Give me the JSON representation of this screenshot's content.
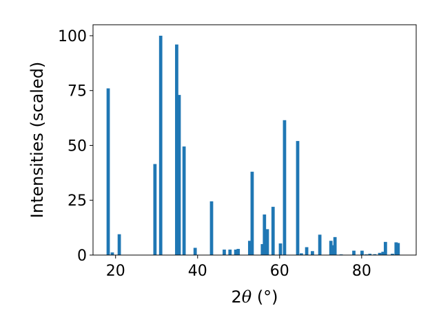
{
  "chart_data": {
    "type": "bar",
    "title": "",
    "xlabel_prefix": "2",
    "xlabel_symbol": "θ",
    "xlabel_suffix": " (°)",
    "ylabel": "Intensities (scaled)",
    "xlim": [
      14.5,
      93.3
    ],
    "ylim": [
      0,
      105
    ],
    "xticks": [
      20,
      40,
      60,
      80
    ],
    "yticks": [
      0,
      25,
      50,
      75,
      100
    ],
    "bar_width": 0.8,
    "grid": false,
    "color": "#1f77b4",
    "x": [
      18.2,
      19.2,
      20.9,
      29.6,
      31.0,
      34.9,
      35.5,
      36.7,
      39.4,
      43.4,
      46.5,
      47.9,
      49.3,
      49.9,
      52.7,
      53.3,
      55.8,
      56.3,
      57.0,
      58.4,
      60.2,
      61.2,
      64.4,
      65.3,
      66.6,
      68.0,
      69.8,
      72.5,
      72.9,
      73.5,
      75.0,
      78.1,
      80.1,
      81.1,
      82.0,
      83.2,
      84.4,
      85.2,
      85.8,
      87.5,
      88.4,
      88.9
    ],
    "values": [
      76,
      1.2,
      9.5,
      41.5,
      100,
      96,
      73,
      49.5,
      3.3,
      24.5,
      2.5,
      2.5,
      2.5,
      2.8,
      6.5,
      38,
      5,
      18.5,
      11.8,
      22,
      5.3,
      61.5,
      52,
      0.8,
      3.6,
      1.8,
      9.3,
      6.5,
      4.5,
      8.2,
      0.3,
      2,
      2,
      0.3,
      0.6,
      0.4,
      1,
      1.5,
      6,
      0.6,
      5.8,
      5.5
    ]
  }
}
